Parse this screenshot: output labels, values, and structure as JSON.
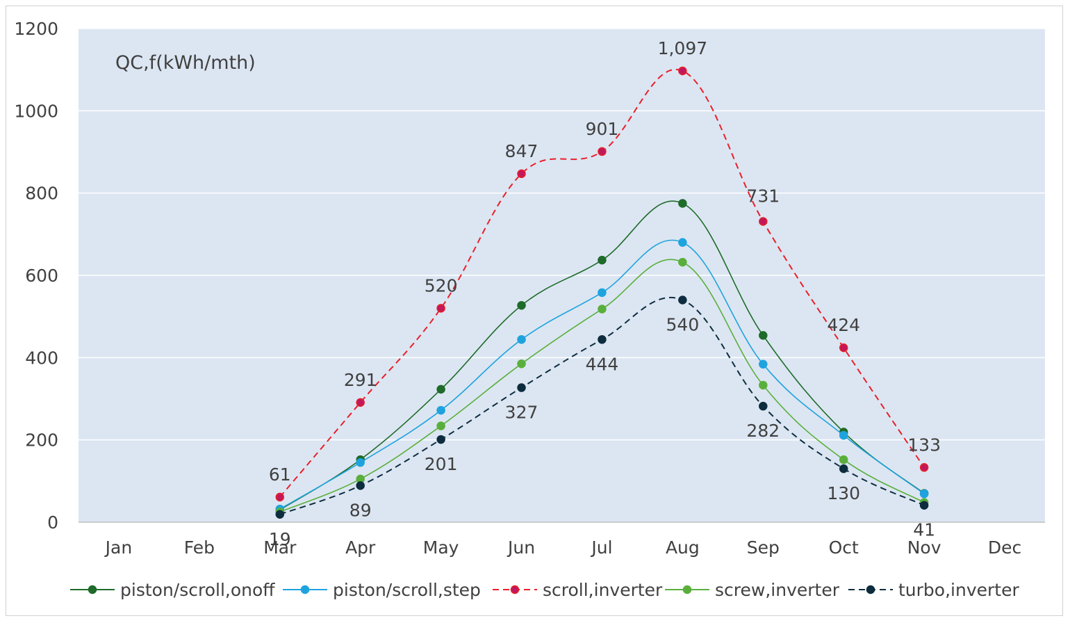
{
  "chart_data": {
    "type": "line",
    "annotation": "QC,f(kWh/mth)",
    "title": "",
    "xlabel": "",
    "ylabel": "",
    "ylim": [
      0,
      1200
    ],
    "yticks": [
      0,
      200,
      400,
      600,
      800,
      1000,
      1200
    ],
    "grid": true,
    "legend_position": "bottom",
    "plot_background": "#dce6f2",
    "categories": [
      "Jan",
      "Feb",
      "Mar",
      "Apr",
      "May",
      "Jun",
      "Jul",
      "Aug",
      "Sep",
      "Oct",
      "Nov",
      "Dec"
    ],
    "series": [
      {
        "name": "piston/scroll,onoff",
        "color": "#1e6b2a",
        "dashed": false,
        "values": [
          null,
          null,
          30,
          152,
          323,
          527,
          637,
          775,
          454,
          219,
          70,
          null
        ]
      },
      {
        "name": "piston/scroll,step",
        "color": "#1fa3df",
        "dashed": false,
        "values": [
          null,
          null,
          32,
          145,
          272,
          444,
          558,
          680,
          384,
          211,
          69,
          null
        ]
      },
      {
        "name": "scroll,inverter",
        "color": "#e8202a",
        "marker_color": "#c2185b",
        "dashed": true,
        "values": [
          null,
          null,
          61,
          291,
          520,
          847,
          901,
          1097,
          731,
          424,
          133,
          null
        ]
      },
      {
        "name": "screw,inverter",
        "color": "#5aaf3c",
        "dashed": false,
        "values": [
          null,
          null,
          25,
          105,
          234,
          385,
          518,
          632,
          333,
          152,
          48,
          null
        ]
      },
      {
        "name": "turbo,inverter",
        "color": "#0d2d3f",
        "dashed": true,
        "values": [
          null,
          null,
          19,
          89,
          201,
          327,
          444,
          540,
          282,
          130,
          41,
          null
        ]
      }
    ],
    "data_labels": [
      {
        "series": "scroll,inverter",
        "labels": [
          "",
          "",
          "61",
          "291",
          "520",
          "847",
          "901",
          "1,097",
          "731",
          "424",
          "133",
          ""
        ]
      },
      {
        "series": "turbo,inverter",
        "labels": [
          "",
          "",
          "19",
          "89",
          "201",
          "327",
          "444",
          "540",
          "282",
          "130",
          "41",
          ""
        ]
      }
    ]
  }
}
